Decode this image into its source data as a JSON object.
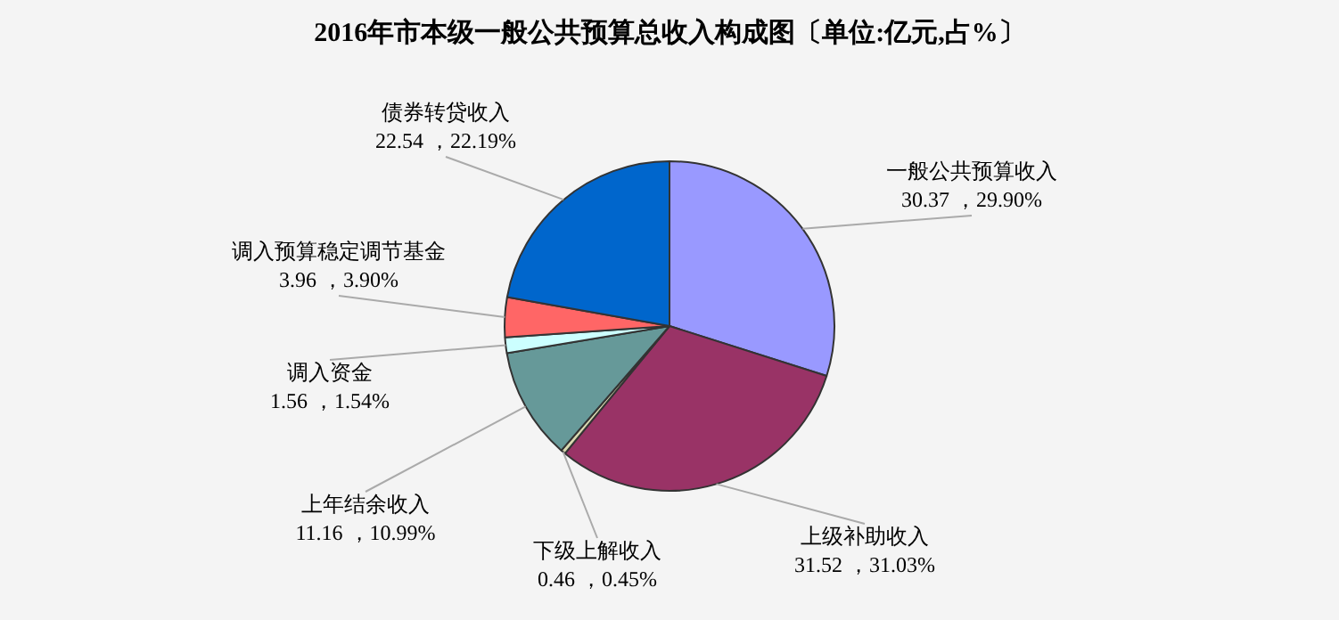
{
  "chart_data": {
    "type": "pie",
    "title": "2016年市本级一般公共预算总收入构成图〔单位:亿元,占%〕",
    "categories": [
      "一般公共预算收入",
      "上级补助收入",
      "下级上解收入",
      "上年结余收入",
      "调入资金",
      "调入预算稳定调节基金",
      "债券转贷收入"
    ],
    "values": [
      30.37,
      31.52,
      0.46,
      11.16,
      1.56,
      3.96,
      22.54
    ],
    "value_labels": [
      "30.37 ，29.90%",
      "31.52 ，31.03%",
      "0.46 ，0.45%",
      "11.16 ，10.99%",
      "1.56 ，1.54%",
      "3.96 ，3.90%",
      "22.54 ，22.19%"
    ],
    "colors": [
      "#9999ff",
      "#993366",
      "#d8d8b0",
      "#669999",
      "#ccffff",
      "#ff6666",
      "#0066cc"
    ],
    "legend": false
  }
}
